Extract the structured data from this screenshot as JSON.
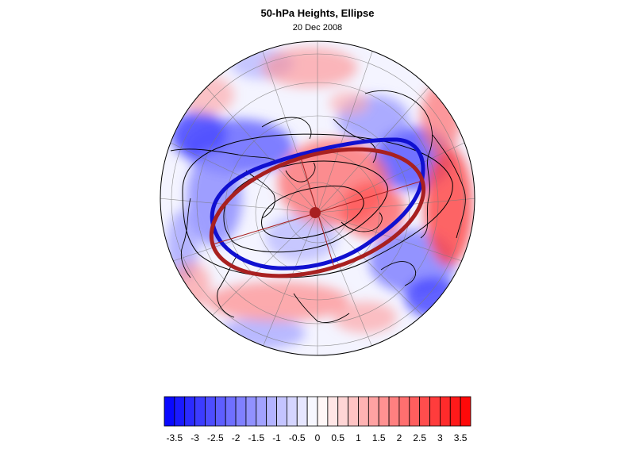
{
  "title": "50-hPa Heights, Ellipse",
  "subtitle": "20 Dec 2008",
  "map": {
    "projection": "north-polar-orthographic",
    "features": [
      "anomaly-field",
      "coastlines",
      "graticule",
      "height-contours",
      "vortex-edge",
      "fitted-ellipse",
      "ellipse-center"
    ],
    "colors": {
      "vortex_edge": "#1010d0",
      "fitted_ellipse": "#a82020",
      "contour": "#000000"
    }
  },
  "colorbar": {
    "min": -3.75,
    "max": 3.75,
    "step": 0.25,
    "tick_labels": [
      "-3.5",
      "-3",
      "-2.5",
      "-2",
      "-1.5",
      "-1",
      "-0.5",
      "0",
      "0.5",
      "1",
      "1.5",
      "2",
      "2.5",
      "3",
      "3.5"
    ],
    "low_color": "#0000ff",
    "mid_color": "#ffffff",
    "high_color": "#ff0000"
  }
}
